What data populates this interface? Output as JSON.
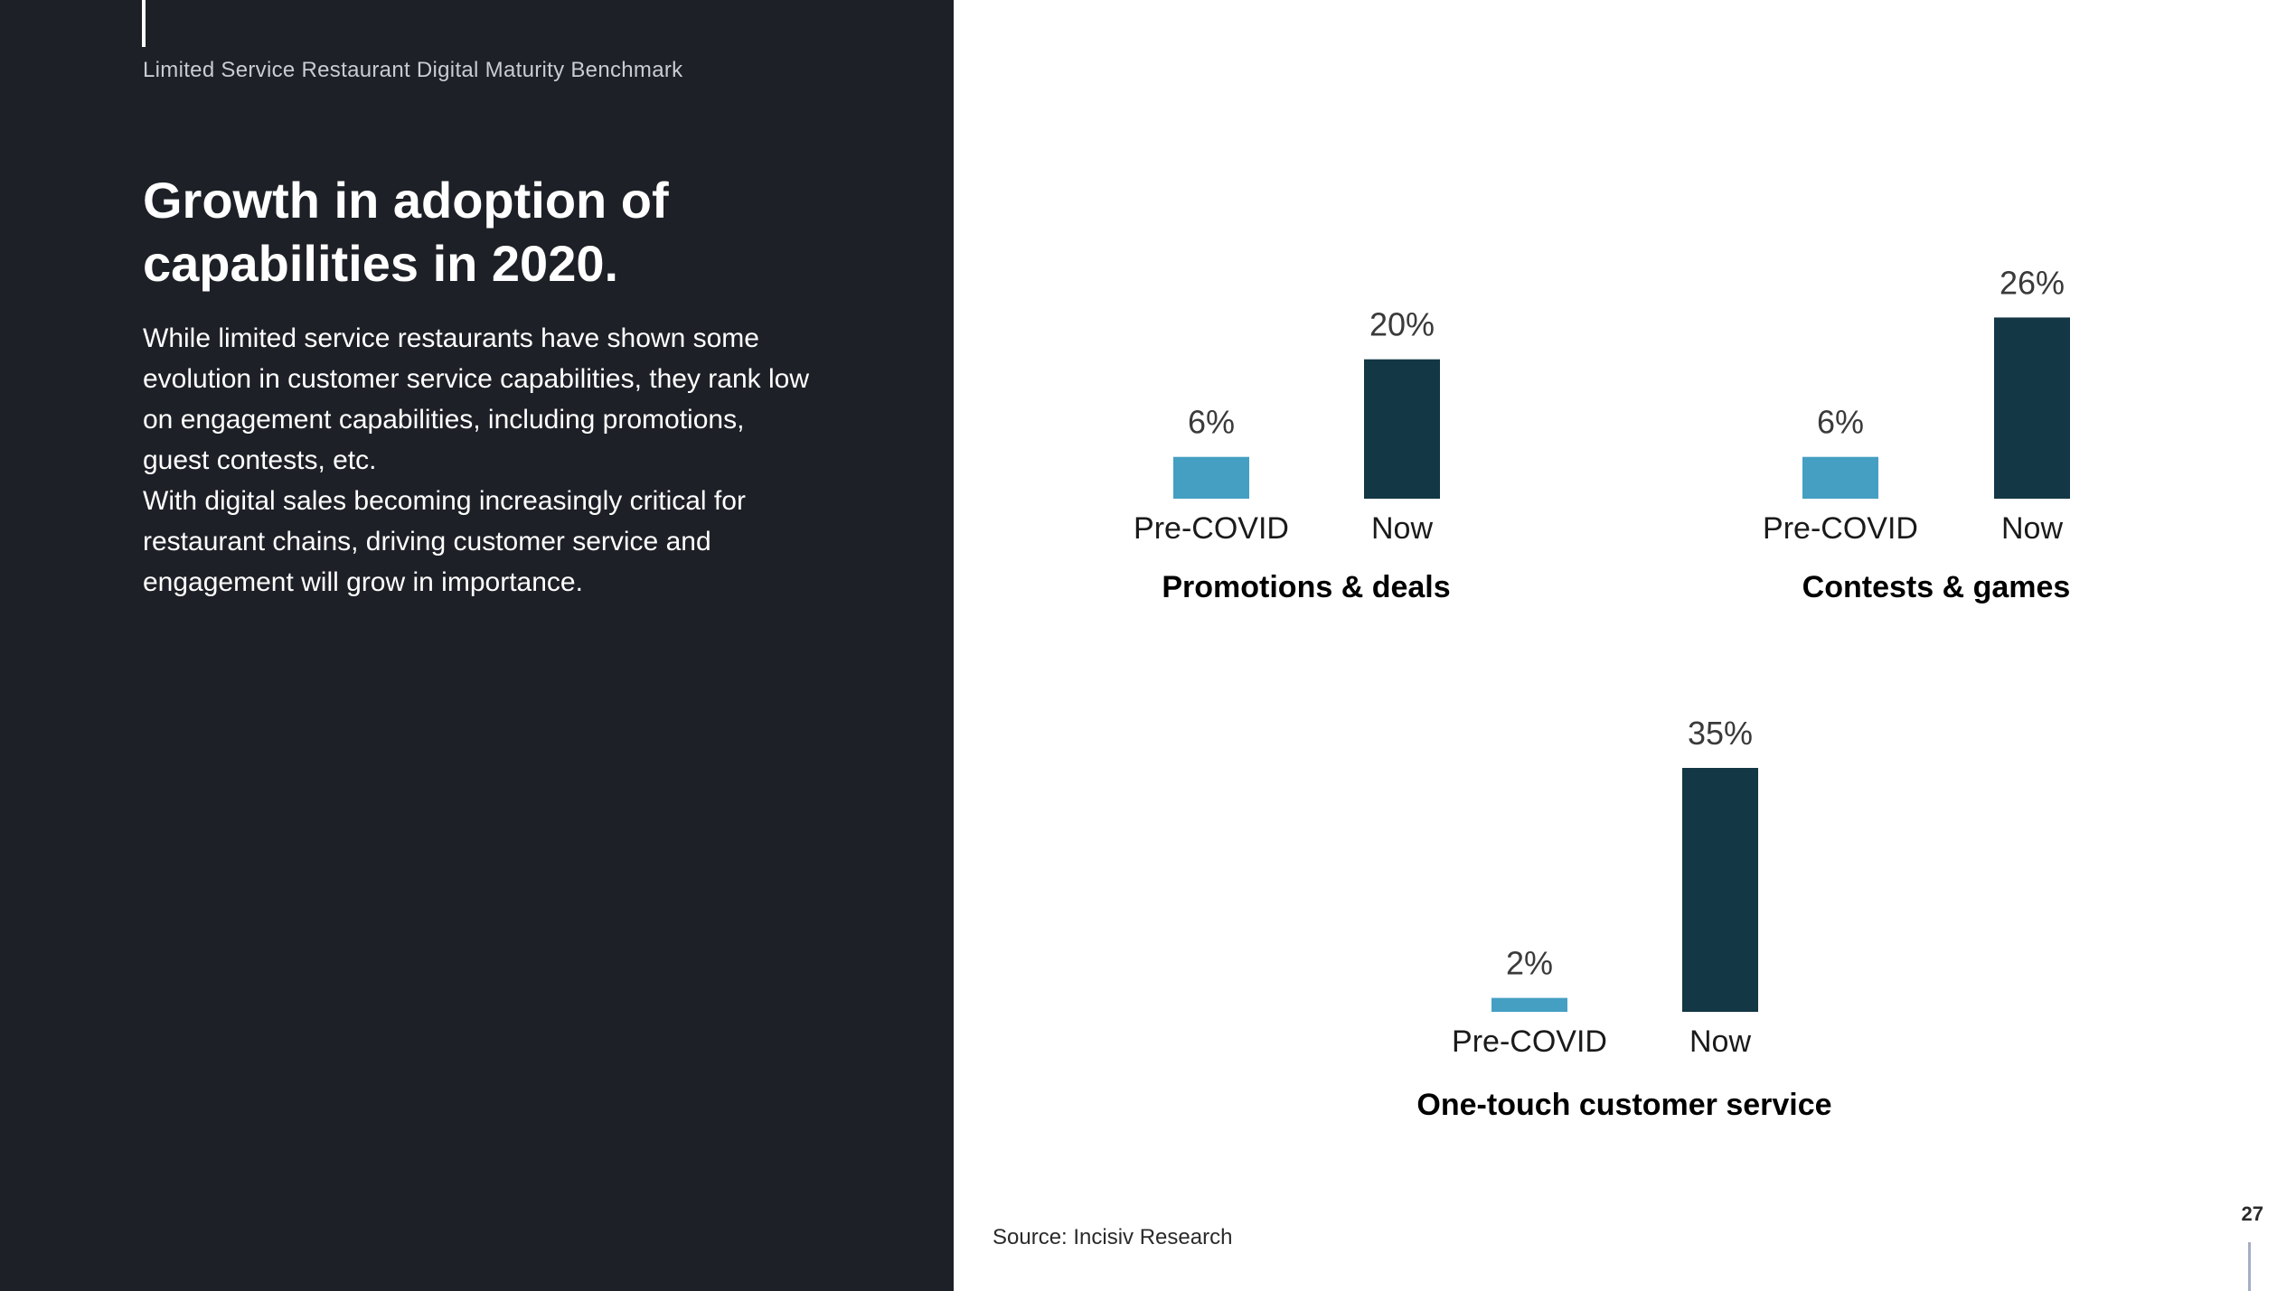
{
  "header": {
    "document_title": "Limited Service Restaurant Digital Maturity Benchmark"
  },
  "main": {
    "heading": "Growth in adoption of capabilities in 2020.",
    "paragraph_1": "While limited service restaurants have shown some evolution in customer service capabilities, they rank low on engagement capabilities, including promotions, guest contests, etc.",
    "paragraph_2": "With digital sales becoming increasingly critical for restaurant chains, driving customer service and engagement will grow in importance."
  },
  "footer": {
    "source": "Source: Incisiv Research",
    "page_number": "27"
  },
  "colors": {
    "panel_background": "#1d2026",
    "pre_covid_bar": "#459fc2",
    "now_bar": "#133744"
  },
  "chart_data": [
    {
      "type": "bar",
      "title": "Promotions & deals",
      "categories": [
        "Pre-COVID",
        "Now"
      ],
      "values": [
        6,
        20
      ],
      "value_labels": [
        "6%",
        "20%"
      ],
      "ylim": [
        0,
        35
      ],
      "grid": false
    },
    {
      "type": "bar",
      "title": "Contests & games",
      "categories": [
        "Pre-COVID",
        "Now"
      ],
      "values": [
        6,
        26
      ],
      "value_labels": [
        "6%",
        "26%"
      ],
      "ylim": [
        0,
        35
      ],
      "grid": false
    },
    {
      "type": "bar",
      "title": "One-touch customer service",
      "categories": [
        "Pre-COVID",
        "Now"
      ],
      "values": [
        2,
        35
      ],
      "value_labels": [
        "2%",
        "35%"
      ],
      "ylim": [
        0,
        35
      ],
      "grid": false
    }
  ]
}
